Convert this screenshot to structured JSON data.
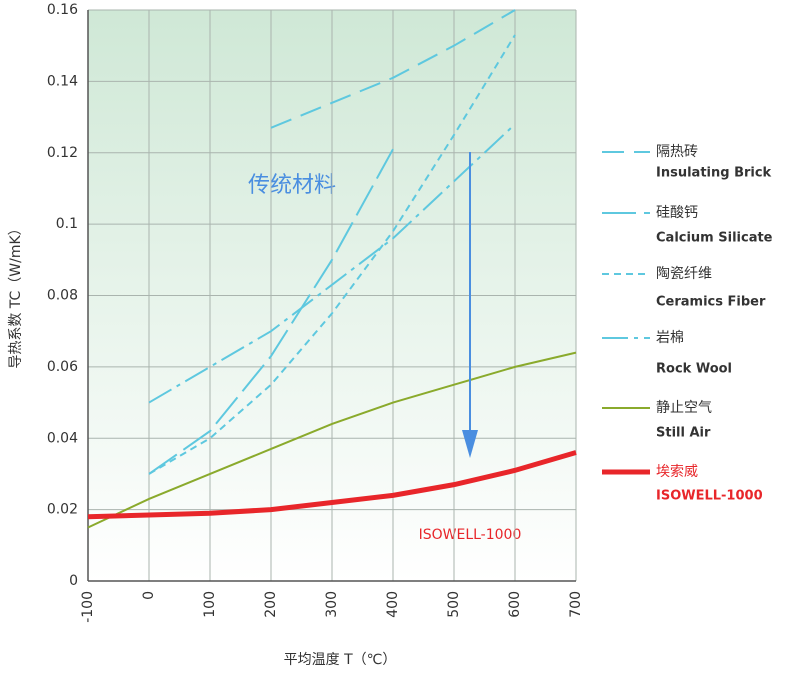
{
  "chart_data": {
    "type": "line",
    "xlabel": "平均温度 T（℃）",
    "ylabel": "导热系数 TC（W/mK）",
    "annotations": [
      "传统材料",
      "ISOWELL-1000"
    ],
    "xlim": [
      -100,
      700
    ],
    "xticks": [
      -100,
      0,
      100,
      200,
      300,
      400,
      500,
      600,
      700
    ],
    "ylim": [
      0,
      0.16
    ],
    "yticks": [
      0,
      0.02,
      0.04,
      0.06,
      0.08,
      0.1,
      0.12,
      0.14,
      0.16
    ],
    "grid": true,
    "series": [
      {
        "name": "隔热砖",
        "name_en": "Insulating Brick",
        "color": "#5ec8df",
        "width": 2,
        "dash": "22 10",
        "x": [
          200,
          300,
          400,
          500,
          600
        ],
        "values": [
          0.127,
          0.134,
          0.141,
          0.15,
          0.16
        ]
      },
      {
        "name": "硅酸钙",
        "name_en": "Calcium Silicate",
        "color": "#5ec8df",
        "width": 2,
        "dash": "34 8",
        "x": [
          0,
          100,
          200,
          300,
          400
        ],
        "values": [
          0.03,
          0.042,
          0.063,
          0.09,
          0.121
        ]
      },
      {
        "name": "陶瓷纤维",
        "name_en": "Ceramics Fiber",
        "color": "#5ec8df",
        "width": 2,
        "dash": "7 5",
        "x": [
          0,
          100,
          200,
          300,
          400,
          500,
          600
        ],
        "values": [
          0.03,
          0.04,
          0.055,
          0.075,
          0.098,
          0.125,
          0.153
        ]
      },
      {
        "name": "岩棉",
        "name_en": "Rock Wool",
        "color": "#5ec8df",
        "width": 2,
        "dash": "26 6 4 6",
        "x": [
          0,
          100,
          200,
          300,
          400,
          500,
          600
        ],
        "values": [
          0.05,
          0.06,
          0.07,
          0.083,
          0.096,
          0.112,
          0.128
        ]
      },
      {
        "name": "静止空气",
        "name_en": "Still Air",
        "color": "#8aaa2c",
        "width": 2,
        "dash": "none",
        "x": [
          -100,
          0,
          100,
          200,
          300,
          400,
          500,
          600,
          700
        ],
        "values": [
          0.015,
          0.023,
          0.03,
          0.037,
          0.044,
          0.05,
          0.055,
          0.06,
          0.064
        ]
      },
      {
        "name": "埃索威",
        "name_en": "ISOWELL-1000",
        "color": "#e8262a",
        "width": 5,
        "dash": "none",
        "x": [
          -100,
          0,
          100,
          200,
          300,
          400,
          500,
          600,
          700
        ],
        "values": [
          0.018,
          0.0185,
          0.019,
          0.02,
          0.022,
          0.024,
          0.027,
          0.031,
          0.036
        ]
      }
    ]
  }
}
